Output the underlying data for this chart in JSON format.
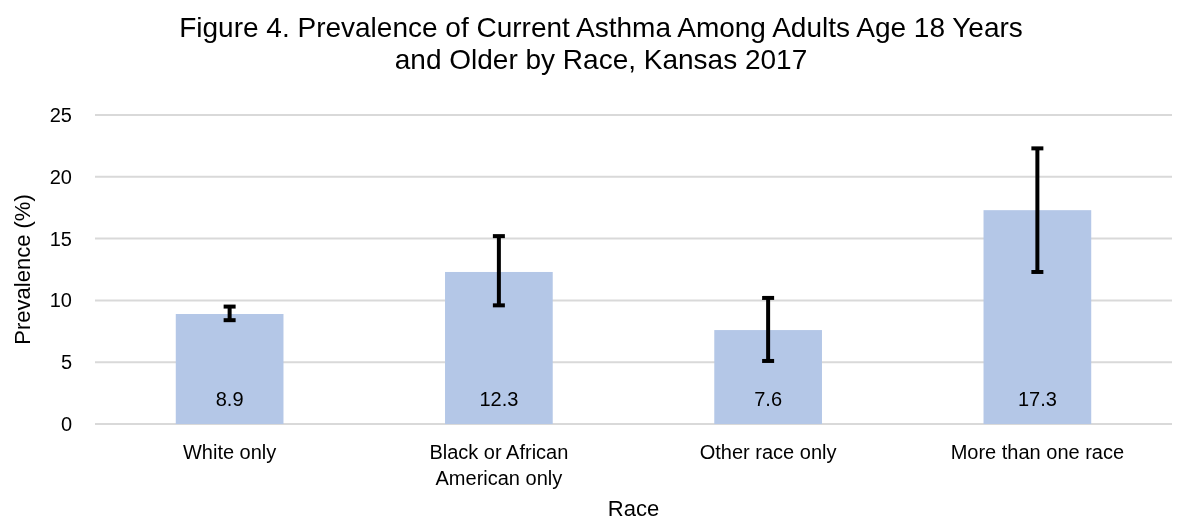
{
  "chart_data": {
    "type": "bar",
    "title": "Figure 4. Prevalence of Current Asthma Among Adults Age 18 Years and Older by Race, Kansas 2017",
    "xlabel": "Race",
    "ylabel": "Prevalence (%)",
    "categories": [
      "White only",
      "Black or African American only",
      "Other race only",
      "More than one race"
    ],
    "values": [
      8.9,
      12.3,
      7.6,
      17.3
    ],
    "errors": [
      [
        8.4,
        9.5
      ],
      [
        9.6,
        15.2
      ],
      [
        5.1,
        10.2
      ],
      [
        12.3,
        22.3
      ]
    ],
    "color": "#b4c7e7",
    "ylim": [
      0,
      25
    ],
    "yticks": [
      0,
      5,
      10,
      15,
      20,
      25
    ],
    "grid": "y",
    "data_labels": true
  }
}
